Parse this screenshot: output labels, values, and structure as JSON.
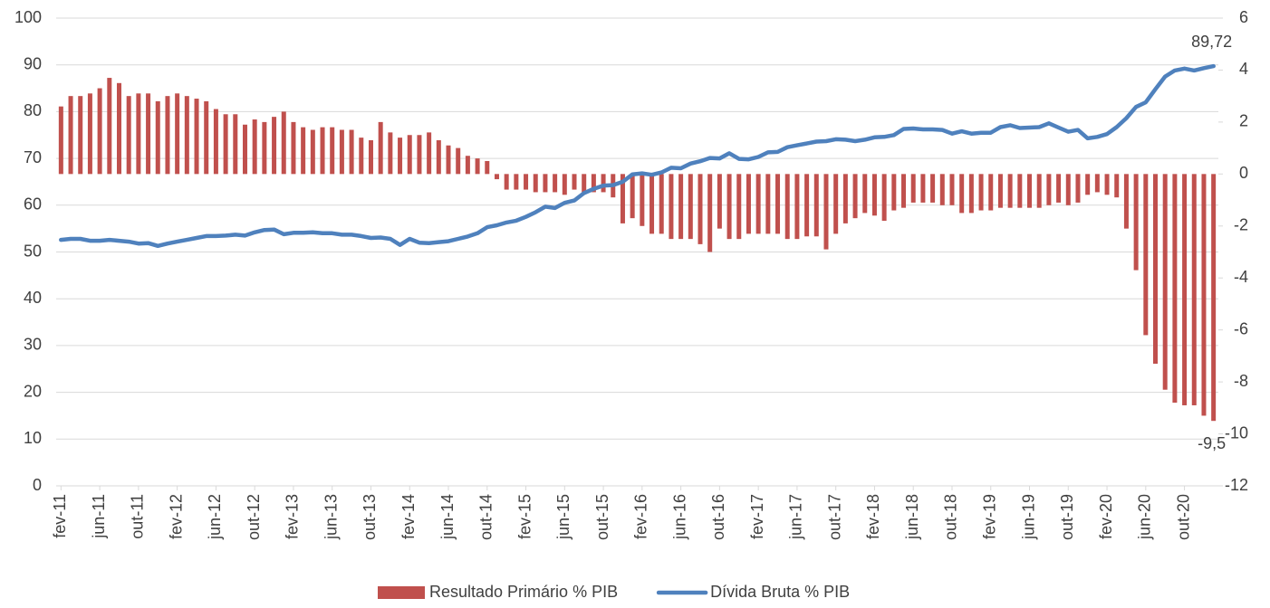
{
  "chart_data": {
    "type": "bar-line",
    "categories": [
      "fev-11",
      null,
      null,
      null,
      "jun-11",
      null,
      null,
      null,
      "out-11",
      null,
      null,
      null,
      "fev-12",
      null,
      null,
      null,
      "jun-12",
      null,
      null,
      null,
      "out-12",
      null,
      null,
      null,
      "fev-13",
      null,
      null,
      null,
      "jun-13",
      null,
      null,
      null,
      "out-13",
      null,
      null,
      null,
      "fev-14",
      null,
      null,
      null,
      "jun-14",
      null,
      null,
      null,
      "out-14",
      null,
      null,
      null,
      "fev-15",
      null,
      null,
      null,
      "jun-15",
      null,
      null,
      null,
      "out-15",
      null,
      null,
      null,
      "fev-16",
      null,
      null,
      null,
      "jun-16",
      null,
      null,
      null,
      "out-16",
      null,
      null,
      null,
      "fev-17",
      null,
      null,
      null,
      "jun-17",
      null,
      null,
      null,
      "out-17",
      null,
      null,
      null,
      "fev-18",
      null,
      null,
      null,
      "jun-18",
      null,
      null,
      null,
      "out-18",
      null,
      null,
      null,
      "fev-19",
      null,
      null,
      null,
      "jun-19",
      null,
      null,
      null,
      "out-19",
      null,
      null,
      null,
      "fev-20",
      null,
      null,
      null,
      "jun-20",
      null,
      null,
      null,
      "out-20",
      null,
      null,
      null
    ],
    "series": [
      {
        "name": "Resultado Primário % PIB",
        "type": "bar",
        "axis": "y2",
        "color": "#c0504d",
        "values": [
          2.6,
          3.0,
          3.0,
          3.1,
          3.3,
          3.7,
          3.5,
          3.0,
          3.1,
          3.1,
          2.8,
          3.0,
          3.1,
          3.0,
          2.9,
          2.8,
          2.5,
          2.3,
          2.3,
          1.9,
          2.1,
          2.0,
          2.2,
          2.4,
          2.0,
          1.8,
          1.7,
          1.8,
          1.8,
          1.7,
          1.7,
          1.4,
          1.3,
          2.0,
          1.6,
          1.4,
          1.5,
          1.5,
          1.6,
          1.3,
          1.1,
          1.0,
          0.7,
          0.6,
          0.5,
          -0.2,
          -0.6,
          -0.6,
          -0.6,
          -0.7,
          -0.7,
          -0.7,
          -0.8,
          -0.6,
          -0.7,
          -0.7,
          -0.7,
          -0.9,
          -1.9,
          -1.7,
          -2.0,
          -2.3,
          -2.3,
          -2.5,
          -2.5,
          -2.5,
          -2.7,
          -3.0,
          -2.1,
          -2.5,
          -2.5,
          -2.3,
          -2.3,
          -2.3,
          -2.3,
          -2.5,
          -2.5,
          -2.4,
          -2.4,
          -2.9,
          -2.3,
          -1.9,
          -1.7,
          -1.5,
          -1.6,
          -1.8,
          -1.4,
          -1.3,
          -1.1,
          -1.1,
          -1.1,
          -1.2,
          -1.2,
          -1.5,
          -1.5,
          -1.4,
          -1.4,
          -1.3,
          -1.3,
          -1.3,
          -1.3,
          -1.3,
          -1.2,
          -1.1,
          -1.2,
          -1.1,
          -0.8,
          -0.7,
          -0.8,
          -0.9,
          -2.1,
          -3.7,
          -6.2,
          -7.3,
          -8.3,
          -8.8,
          -8.9,
          -8.9,
          -9.3,
          -9.5
        ],
        "value_labels": [
          null,
          null,
          null,
          null,
          null,
          null,
          null,
          null,
          null,
          null,
          null,
          null,
          null,
          null,
          null,
          null,
          null,
          null,
          null,
          null,
          null,
          null,
          null,
          null,
          null,
          null,
          null,
          null,
          null,
          null,
          null,
          null,
          null,
          null,
          null,
          null,
          null,
          null,
          null,
          null,
          null,
          null,
          null,
          null,
          null,
          null,
          null,
          null,
          null,
          null,
          null,
          null,
          null,
          null,
          null,
          null,
          null,
          null,
          null,
          null,
          null,
          null,
          null,
          null,
          null,
          null,
          null,
          null,
          null,
          null,
          null,
          null,
          null,
          null,
          null,
          null,
          null,
          null,
          null,
          null,
          null,
          null,
          null,
          null,
          null,
          null,
          null,
          null,
          null,
          null,
          null,
          null,
          null,
          null,
          null,
          null,
          null,
          null,
          null,
          null,
          null,
          null,
          null,
          null,
          null,
          null,
          null,
          null,
          null,
          null,
          null,
          null,
          null,
          null,
          null,
          null,
          null,
          null,
          null,
          "-9,5"
        ]
      },
      {
        "name": "Dívida Bruta % PIB",
        "type": "line",
        "axis": "y",
        "color": "#4f81bd",
        "values": [
          52.6,
          52.8,
          52.8,
          52.4,
          52.4,
          52.6,
          52.4,
          52.2,
          51.8,
          51.9,
          51.3,
          51.8,
          52.2,
          52.6,
          53.0,
          53.4,
          53.4,
          53.5,
          53.7,
          53.5,
          54.2,
          54.7,
          54.8,
          53.8,
          54.1,
          54.1,
          54.2,
          54.0,
          54.0,
          53.7,
          53.7,
          53.4,
          53.0,
          53.1,
          52.8,
          51.5,
          52.8,
          52.0,
          51.9,
          52.1,
          52.3,
          52.8,
          53.3,
          54.0,
          55.3,
          55.7,
          56.3,
          56.7,
          57.5,
          58.5,
          59.7,
          59.4,
          60.5,
          61.0,
          62.6,
          63.5,
          64.2,
          64.3,
          65.0,
          66.6,
          66.8,
          66.5,
          67.0,
          68.0,
          67.9,
          68.9,
          69.4,
          70.1,
          70.0,
          71.1,
          69.9,
          69.8,
          70.3,
          71.3,
          71.4,
          72.4,
          72.8,
          73.2,
          73.6,
          73.7,
          74.1,
          74.0,
          73.7,
          74.0,
          74.5,
          74.6,
          75.0,
          76.3,
          76.4,
          76.2,
          76.2,
          76.1,
          75.3,
          75.8,
          75.3,
          75.5,
          75.5,
          76.7,
          77.1,
          76.5,
          76.6,
          76.7,
          77.5,
          76.6,
          75.7,
          76.1,
          74.3,
          74.6,
          75.2,
          76.7,
          78.6,
          81.0,
          82.0,
          84.8,
          87.5,
          88.8,
          89.2,
          88.8,
          89.3,
          89.72
        ],
        "value_labels": [
          null,
          null,
          null,
          null,
          null,
          null,
          null,
          null,
          null,
          null,
          null,
          null,
          null,
          null,
          null,
          null,
          null,
          null,
          null,
          null,
          null,
          null,
          null,
          null,
          null,
          null,
          null,
          null,
          null,
          null,
          null,
          null,
          null,
          null,
          null,
          null,
          null,
          null,
          null,
          null,
          null,
          null,
          null,
          null,
          null,
          null,
          null,
          null,
          null,
          null,
          null,
          null,
          null,
          null,
          null,
          null,
          null,
          null,
          null,
          null,
          null,
          null,
          null,
          null,
          null,
          null,
          null,
          null,
          null,
          null,
          null,
          null,
          null,
          null,
          null,
          null,
          null,
          null,
          null,
          null,
          null,
          null,
          null,
          null,
          null,
          null,
          null,
          null,
          null,
          null,
          null,
          null,
          null,
          null,
          null,
          null,
          null,
          null,
          null,
          null,
          null,
          null,
          null,
          null,
          null,
          null,
          null,
          null,
          null,
          null,
          null,
          null,
          null,
          null,
          null,
          null,
          null,
          null,
          null,
          "89,72"
        ]
      }
    ],
    "ylim": [
      0,
      100
    ],
    "yticks": [
      0,
      10,
      20,
      30,
      40,
      50,
      60,
      70,
      80,
      90,
      100
    ],
    "y2lim": [
      -12,
      6
    ],
    "y2ticks": [
      -12,
      -10,
      -8,
      -6,
      -4,
      -2,
      0,
      2,
      4,
      6
    ],
    "grid": true,
    "legend": "bottom"
  }
}
